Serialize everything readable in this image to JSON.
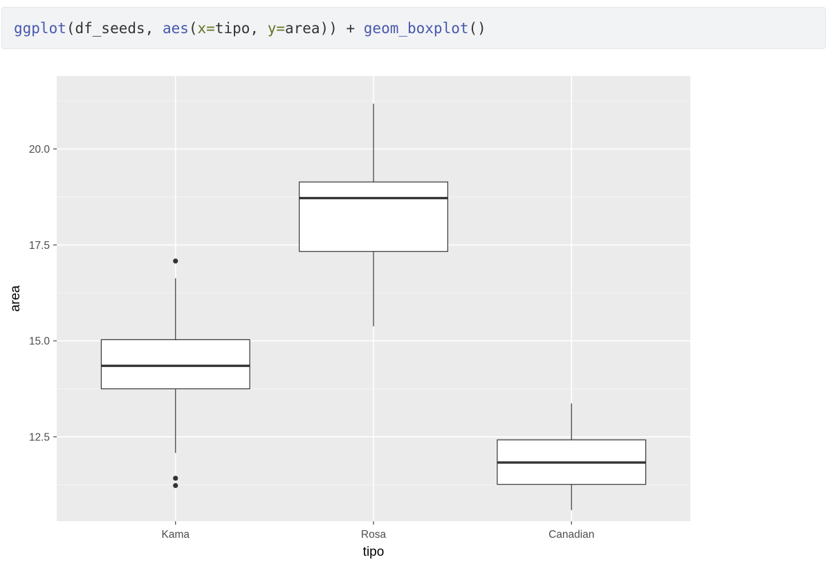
{
  "code": {
    "tokens": [
      {
        "text": "ggplot",
        "kind": "fn"
      },
      {
        "text": "(df_seeds, ",
        "kind": "plain"
      },
      {
        "text": "aes",
        "kind": "fn"
      },
      {
        "text": "(",
        "kind": "plain"
      },
      {
        "text": "x=",
        "kind": "arg"
      },
      {
        "text": "tipo, ",
        "kind": "plain"
      },
      {
        "text": "y=",
        "kind": "arg"
      },
      {
        "text": "area)) + ",
        "kind": "plain"
      },
      {
        "text": "geom_boxplot",
        "kind": "fn"
      },
      {
        "text": "()",
        "kind": "plain"
      }
    ]
  },
  "chart_data": {
    "type": "boxplot",
    "xlabel": "tipo",
    "ylabel": "area",
    "categories": [
      "Kama",
      "Rosa",
      "Canadian"
    ],
    "ylim": [
      10.3,
      21.9
    ],
    "yticks": [
      12.5,
      15.0,
      17.5,
      20.0
    ],
    "ytick_labels": [
      "12.5",
      "15.0",
      "17.5",
      "20.0"
    ],
    "boxes": [
      {
        "category": "Kama",
        "lower_whisker": 12.08,
        "q1": 13.75,
        "median": 14.35,
        "q3": 15.03,
        "upper_whisker": 16.63,
        "outliers": [
          17.08,
          11.42,
          11.23
        ]
      },
      {
        "category": "Rosa",
        "lower_whisker": 15.38,
        "q1": 17.33,
        "median": 18.72,
        "q3": 19.14,
        "upper_whisker": 21.18,
        "outliers": []
      },
      {
        "category": "Canadian",
        "lower_whisker": 10.59,
        "q1": 11.26,
        "median": 11.83,
        "q3": 12.42,
        "upper_whisker": 13.37,
        "outliers": []
      }
    ],
    "grid": true,
    "colors": {
      "panel": "#ebebeb",
      "grid_major": "#ffffff",
      "grid_minor": "#f5f5f5",
      "box_fill": "#ffffff",
      "box_stroke": "#333333",
      "tick_text": "#4d4d4d",
      "axis_title": "#000000"
    }
  }
}
